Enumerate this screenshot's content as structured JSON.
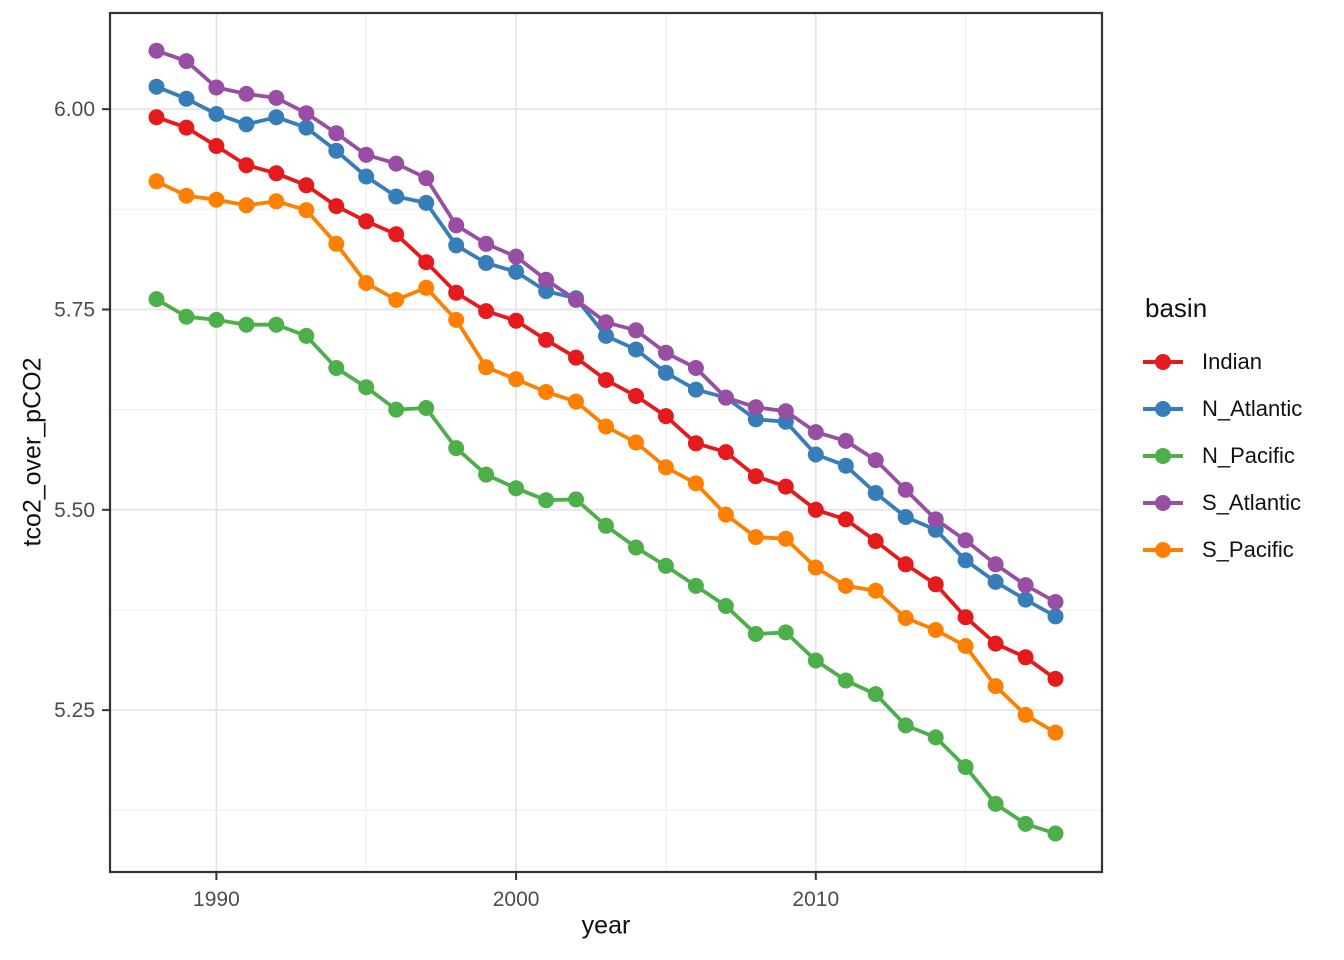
{
  "chart_data": {
    "type": "line",
    "title": "",
    "xlabel": "year",
    "ylabel": "tco2_over_pCO2",
    "legend": {
      "title": "basin",
      "position": "right"
    },
    "x": [
      1988,
      1989,
      1990,
      1991,
      1992,
      1993,
      1994,
      1995,
      1996,
      1997,
      1998,
      1999,
      2000,
      2001,
      2002,
      2003,
      2004,
      2005,
      2006,
      2007,
      2008,
      2009,
      2010,
      2011,
      2012,
      2013,
      2014,
      2015,
      2016,
      2017,
      2018
    ],
    "series": [
      {
        "name": "Indian",
        "color": "#E41A1C",
        "values": [
          5.99,
          5.977,
          5.954,
          5.93,
          5.92,
          5.905,
          5.879,
          5.86,
          5.844,
          5.809,
          5.771,
          5.748,
          5.736,
          5.712,
          5.69,
          5.662,
          5.642,
          5.617,
          5.583,
          5.572,
          5.542,
          5.529,
          5.5,
          5.488,
          5.461,
          5.432,
          5.407,
          5.366,
          5.333,
          5.316,
          5.289
        ]
      },
      {
        "name": "N_Atlantic",
        "color": "#377EB8",
        "values": [
          6.028,
          6.013,
          5.994,
          5.981,
          5.99,
          5.977,
          5.948,
          5.916,
          5.891,
          5.883,
          5.83,
          5.808,
          5.797,
          5.773,
          5.764,
          5.717,
          5.7,
          5.671,
          5.65,
          5.64,
          5.613,
          5.61,
          5.569,
          5.555,
          5.521,
          5.491,
          5.475,
          5.437,
          5.41,
          5.388,
          5.367
        ]
      },
      {
        "name": "N_Pacific",
        "color": "#4DAF4A",
        "values": [
          5.763,
          5.741,
          5.737,
          5.731,
          5.731,
          5.717,
          5.677,
          5.653,
          5.625,
          5.627,
          5.577,
          5.544,
          5.527,
          5.512,
          5.513,
          5.48,
          5.453,
          5.43,
          5.405,
          5.38,
          5.345,
          5.347,
          5.312,
          5.287,
          5.27,
          5.231,
          5.216,
          5.179,
          5.133,
          5.108,
          5.096
        ]
      },
      {
        "name": "S_Atlantic",
        "color": "#984EA3",
        "values": [
          6.073,
          6.06,
          6.027,
          6.019,
          6.014,
          5.995,
          5.97,
          5.943,
          5.932,
          5.914,
          5.855,
          5.832,
          5.816,
          5.787,
          5.762,
          5.734,
          5.724,
          5.696,
          5.677,
          5.64,
          5.628,
          5.623,
          5.597,
          5.586,
          5.562,
          5.525,
          5.488,
          5.462,
          5.432,
          5.406,
          5.385
        ]
      },
      {
        "name": "S_Pacific",
        "color": "#FF7F00",
        "values": [
          5.91,
          5.892,
          5.887,
          5.88,
          5.885,
          5.874,
          5.832,
          5.783,
          5.762,
          5.777,
          5.737,
          5.678,
          5.663,
          5.647,
          5.635,
          5.604,
          5.584,
          5.553,
          5.533,
          5.494,
          5.466,
          5.464,
          5.428,
          5.405,
          5.399,
          5.365,
          5.35,
          5.33,
          5.28,
          5.244,
          5.222
        ]
      }
    ],
    "x_ticks": [
      1990,
      2000,
      2010
    ],
    "x_tick_labels": [
      "1990",
      "2000",
      "2010"
    ],
    "x_minor": [
      1995,
      2005,
      2015
    ],
    "y_ticks": [
      6.0,
      5.75,
      5.5,
      5.25
    ],
    "y_tick_labels": [
      "6.00",
      "5.75",
      "5.50",
      "5.25"
    ],
    "y_minor": [
      5.875,
      5.625,
      5.375,
      5.125
    ],
    "xlim": [
      1986.45,
      2019.55
    ],
    "ylim": [
      5.048,
      6.12
    ],
    "grid": true
  }
}
